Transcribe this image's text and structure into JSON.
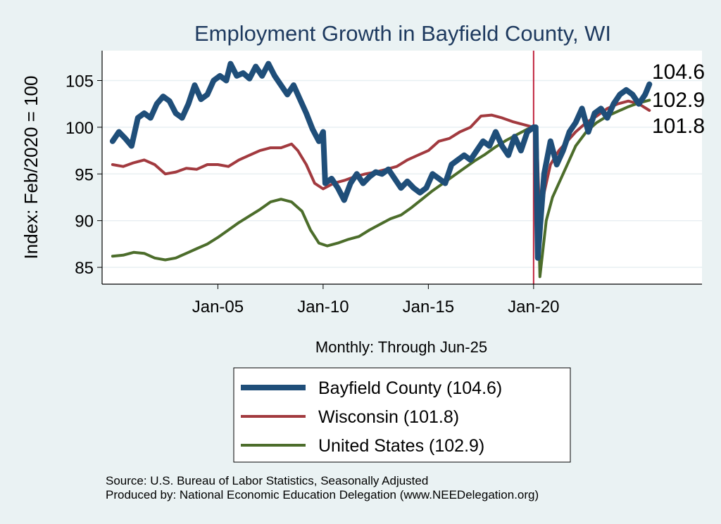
{
  "chart_data": {
    "type": "line",
    "title": "Employment Growth in Bayfield  County, WI",
    "ylabel": "Index: Feb/2020 = 100",
    "xlabel": "Monthly: Through Jun-25",
    "ylim": [
      83.2,
      108.2
    ],
    "yticks": [
      85,
      90,
      95,
      100,
      105
    ],
    "xticks": [
      {
        "label": "Jan-05",
        "year": 2005.0
      },
      {
        "label": "Jan-10",
        "year": 2010.0
      },
      {
        "label": "Jan-15",
        "year": 2015.0
      },
      {
        "label": "Jan-20",
        "year": 2020.0
      }
    ],
    "xlim": [
      1999.5,
      2028.0
    ],
    "reference_line": {
      "year": 2020.0,
      "color": "#c0243e"
    },
    "grid": true,
    "legend_position": "bottom",
    "series": [
      {
        "name": "Bayfield  County (104.6)",
        "color": "#1f4e79",
        "width": 8,
        "end_label": "104.6",
        "points": [
          [
            2000.0,
            98.5
          ],
          [
            2000.3,
            99.5
          ],
          [
            2000.6,
            98.8
          ],
          [
            2000.9,
            98.0
          ],
          [
            2001.2,
            101.0
          ],
          [
            2001.5,
            101.5
          ],
          [
            2001.8,
            101.0
          ],
          [
            2002.1,
            102.5
          ],
          [
            2002.4,
            103.3
          ],
          [
            2002.7,
            102.8
          ],
          [
            2003.0,
            101.5
          ],
          [
            2003.3,
            101.0
          ],
          [
            2003.6,
            102.5
          ],
          [
            2003.9,
            104.5
          ],
          [
            2004.2,
            103.0
          ],
          [
            2004.5,
            103.5
          ],
          [
            2004.8,
            105.0
          ],
          [
            2005.1,
            105.5
          ],
          [
            2005.4,
            105.0
          ],
          [
            2005.6,
            106.8
          ],
          [
            2005.9,
            105.5
          ],
          [
            2006.2,
            105.8
          ],
          [
            2006.5,
            105.2
          ],
          [
            2006.8,
            106.5
          ],
          [
            2007.1,
            105.5
          ],
          [
            2007.4,
            106.8
          ],
          [
            2007.7,
            105.5
          ],
          [
            2008.0,
            104.5
          ],
          [
            2008.3,
            103.5
          ],
          [
            2008.6,
            104.5
          ],
          [
            2008.9,
            103.0
          ],
          [
            2009.2,
            101.5
          ],
          [
            2009.5,
            99.8
          ],
          [
            2009.8,
            98.5
          ],
          [
            2010.0,
            99.5
          ],
          [
            2010.1,
            94.0
          ],
          [
            2010.4,
            94.5
          ],
          [
            2010.7,
            93.5
          ],
          [
            2011.0,
            92.2
          ],
          [
            2011.3,
            94.0
          ],
          [
            2011.6,
            95.0
          ],
          [
            2011.9,
            94.0
          ],
          [
            2012.2,
            94.7
          ],
          [
            2012.5,
            95.2
          ],
          [
            2012.8,
            95.0
          ],
          [
            2013.1,
            95.5
          ],
          [
            2013.4,
            94.5
          ],
          [
            2013.7,
            93.5
          ],
          [
            2014.0,
            94.2
          ],
          [
            2014.3,
            93.5
          ],
          [
            2014.6,
            93.0
          ],
          [
            2014.9,
            93.5
          ],
          [
            2015.2,
            95.0
          ],
          [
            2015.5,
            94.5
          ],
          [
            2015.8,
            94.0
          ],
          [
            2016.1,
            96.0
          ],
          [
            2016.4,
            96.5
          ],
          [
            2016.7,
            97.0
          ],
          [
            2017.0,
            96.5
          ],
          [
            2017.3,
            97.5
          ],
          [
            2017.6,
            98.5
          ],
          [
            2017.9,
            98.0
          ],
          [
            2018.2,
            99.5
          ],
          [
            2018.5,
            98.0
          ],
          [
            2018.8,
            97.0
          ],
          [
            2019.1,
            99.0
          ],
          [
            2019.4,
            97.5
          ],
          [
            2019.7,
            99.5
          ],
          [
            2020.0,
            100.0
          ],
          [
            2020.1,
            100.0
          ],
          [
            2020.2,
            86.0
          ],
          [
            2020.3,
            89.0
          ],
          [
            2020.5,
            95.0
          ],
          [
            2020.8,
            98.5
          ],
          [
            2021.1,
            96.0
          ],
          [
            2021.4,
            97.5
          ],
          [
            2021.7,
            99.5
          ],
          [
            2022.0,
            100.5
          ],
          [
            2022.3,
            102.0
          ],
          [
            2022.6,
            99.5
          ],
          [
            2022.9,
            101.5
          ],
          [
            2023.2,
            102.0
          ],
          [
            2023.5,
            101.0
          ],
          [
            2023.8,
            102.5
          ],
          [
            2024.1,
            103.5
          ],
          [
            2024.4,
            104.0
          ],
          [
            2024.7,
            103.5
          ],
          [
            2025.0,
            102.5
          ],
          [
            2025.3,
            103.5
          ],
          [
            2025.5,
            104.6
          ]
        ]
      },
      {
        "name": "Wisconsin (101.8)",
        "color": "#a23a3f",
        "width": 4,
        "end_label": "101.8",
        "points": [
          [
            2000.0,
            96.0
          ],
          [
            2000.5,
            95.8
          ],
          [
            2001.0,
            96.2
          ],
          [
            2001.5,
            96.5
          ],
          [
            2002.0,
            96.0
          ],
          [
            2002.5,
            95.0
          ],
          [
            2003.0,
            95.2
          ],
          [
            2003.5,
            95.6
          ],
          [
            2004.0,
            95.5
          ],
          [
            2004.5,
            96.0
          ],
          [
            2005.0,
            96.0
          ],
          [
            2005.5,
            95.8
          ],
          [
            2006.0,
            96.5
          ],
          [
            2006.5,
            97.0
          ],
          [
            2007.0,
            97.5
          ],
          [
            2007.5,
            97.8
          ],
          [
            2008.0,
            97.8
          ],
          [
            2008.5,
            98.2
          ],
          [
            2008.8,
            97.5
          ],
          [
            2009.2,
            96.0
          ],
          [
            2009.6,
            94.0
          ],
          [
            2010.0,
            93.4
          ],
          [
            2010.5,
            94.0
          ],
          [
            2011.0,
            94.3
          ],
          [
            2011.5,
            94.7
          ],
          [
            2012.0,
            95.0
          ],
          [
            2012.5,
            95.2
          ],
          [
            2013.0,
            95.5
          ],
          [
            2013.5,
            95.8
          ],
          [
            2014.0,
            96.5
          ],
          [
            2014.5,
            97.0
          ],
          [
            2015.0,
            97.5
          ],
          [
            2015.5,
            98.5
          ],
          [
            2016.0,
            98.8
          ],
          [
            2016.5,
            99.5
          ],
          [
            2017.0,
            100.0
          ],
          [
            2017.5,
            101.2
          ],
          [
            2018.0,
            101.3
          ],
          [
            2018.5,
            101.0
          ],
          [
            2019.0,
            100.6
          ],
          [
            2019.5,
            100.3
          ],
          [
            2020.0,
            100.0
          ],
          [
            2020.15,
            99.5
          ],
          [
            2020.3,
            89.0
          ],
          [
            2020.5,
            93.0
          ],
          [
            2020.8,
            96.0
          ],
          [
            2021.2,
            97.5
          ],
          [
            2021.6,
            98.5
          ],
          [
            2022.0,
            99.5
          ],
          [
            2022.5,
            100.5
          ],
          [
            2023.0,
            101.2
          ],
          [
            2023.5,
            102.0
          ],
          [
            2024.0,
            102.5
          ],
          [
            2024.5,
            102.8
          ],
          [
            2025.0,
            102.5
          ],
          [
            2025.5,
            101.8
          ]
        ]
      },
      {
        "name": "United States (102.9)",
        "color": "#4c6d2b",
        "width": 4,
        "end_label": "102.9",
        "points": [
          [
            2000.0,
            86.2
          ],
          [
            2000.5,
            86.3
          ],
          [
            2001.0,
            86.6
          ],
          [
            2001.5,
            86.5
          ],
          [
            2002.0,
            86.0
          ],
          [
            2002.5,
            85.8
          ],
          [
            2003.0,
            86.0
          ],
          [
            2003.5,
            86.5
          ],
          [
            2004.0,
            87.0
          ],
          [
            2004.5,
            87.5
          ],
          [
            2005.0,
            88.2
          ],
          [
            2005.5,
            89.0
          ],
          [
            2006.0,
            89.8
          ],
          [
            2006.5,
            90.5
          ],
          [
            2007.0,
            91.2
          ],
          [
            2007.5,
            92.0
          ],
          [
            2008.0,
            92.3
          ],
          [
            2008.5,
            92.0
          ],
          [
            2009.0,
            91.0
          ],
          [
            2009.4,
            89.0
          ],
          [
            2009.8,
            87.6
          ],
          [
            2010.2,
            87.3
          ],
          [
            2010.7,
            87.6
          ],
          [
            2011.2,
            88.0
          ],
          [
            2011.7,
            88.3
          ],
          [
            2012.2,
            89.0
          ],
          [
            2012.7,
            89.6
          ],
          [
            2013.2,
            90.2
          ],
          [
            2013.7,
            90.6
          ],
          [
            2014.2,
            91.4
          ],
          [
            2014.7,
            92.3
          ],
          [
            2015.2,
            93.2
          ],
          [
            2015.7,
            94.0
          ],
          [
            2016.2,
            94.8
          ],
          [
            2016.7,
            95.6
          ],
          [
            2017.2,
            96.4
          ],
          [
            2017.7,
            97.1
          ],
          [
            2018.2,
            97.9
          ],
          [
            2018.7,
            98.6
          ],
          [
            2019.2,
            99.2
          ],
          [
            2019.7,
            99.8
          ],
          [
            2020.0,
            100.0
          ],
          [
            2020.15,
            99.0
          ],
          [
            2020.3,
            84.0
          ],
          [
            2020.6,
            90.0
          ],
          [
            2020.9,
            92.5
          ],
          [
            2021.2,
            94.0
          ],
          [
            2021.6,
            96.0
          ],
          [
            2022.0,
            98.0
          ],
          [
            2022.5,
            99.5
          ],
          [
            2023.0,
            100.5
          ],
          [
            2023.5,
            101.2
          ],
          [
            2024.0,
            101.7
          ],
          [
            2024.5,
            102.2
          ],
          [
            2025.0,
            102.6
          ],
          [
            2025.5,
            102.9
          ]
        ]
      }
    ]
  },
  "footer": {
    "source": "Source: U.S. Bureau of Labor Statistics, Seasonally Adjusted",
    "produced_by": "Produced by: National Economic Education Delegation (www.NEEDelegation.org)"
  }
}
